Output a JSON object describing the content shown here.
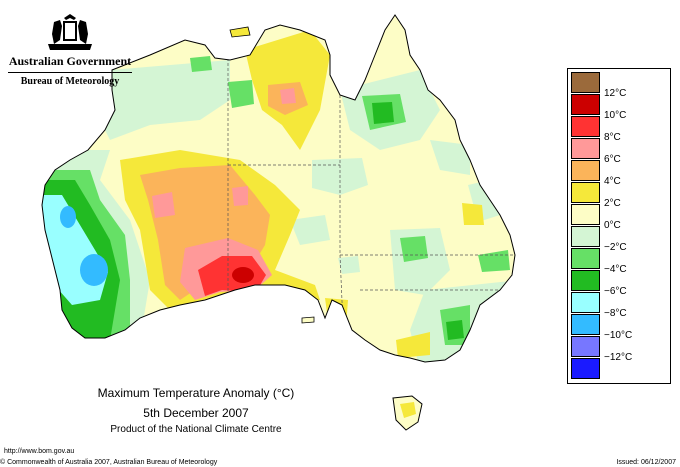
{
  "header": {
    "government": "Australian Government",
    "bureau": "Bureau of Meteorology"
  },
  "map": {
    "title": "Maximum Temperature Anomaly (°C)",
    "date": "5th December 2007",
    "product": "Product of the National Climate Centre",
    "region": "Australia"
  },
  "legend": {
    "items": [
      {
        "label": "",
        "color": "#9b6a3b"
      },
      {
        "label": "12°C",
        "color": "#cc0000"
      },
      {
        "label": "10°C",
        "color": "#ff3333"
      },
      {
        "label": "8°C",
        "color": "#ff9999"
      },
      {
        "label": "6°C",
        "color": "#fbb45a"
      },
      {
        "label": "4°C",
        "color": "#f5e83a"
      },
      {
        "label": "2°C",
        "color": "#fdfdc6"
      },
      {
        "label": "0°C",
        "color": "#d4f5d4"
      },
      {
        "label": "−2°C",
        "color": "#66e066"
      },
      {
        "label": "−4°C",
        "color": "#22bb22"
      },
      {
        "label": "−6°C",
        "color": "#99ffff"
      },
      {
        "label": "−8°C",
        "color": "#33bbff"
      },
      {
        "label": "−10°C",
        "color": "#7777ff"
      },
      {
        "label": "−12°C",
        "color": "#1a1aff"
      }
    ]
  },
  "footer": {
    "url": "http://www.bom.gov.au",
    "copyright": "© Commonwealth of Australia 2007, Australian Bureau of Meteorology",
    "issued": "Issued: 06/12/2007"
  }
}
